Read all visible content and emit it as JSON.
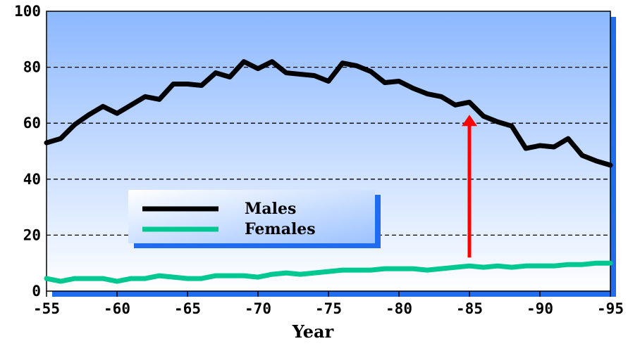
{
  "chart_data": {
    "type": "line",
    "title": "",
    "xlabel": "Year",
    "ylabel": "",
    "xlim": [
      1955,
      1995
    ],
    "ylim": [
      0,
      100
    ],
    "grid": "horizontal-dashed",
    "legend_position": "center-left",
    "x_ticks": [
      {
        "value": 1955,
        "label": "-55"
      },
      {
        "value": 1960,
        "label": "-60"
      },
      {
        "value": 1965,
        "label": "-65"
      },
      {
        "value": 1970,
        "label": "-70"
      },
      {
        "value": 1975,
        "label": "-75"
      },
      {
        "value": 1980,
        "label": "-80"
      },
      {
        "value": 1985,
        "label": "-85"
      },
      {
        "value": 1990,
        "label": "-90"
      },
      {
        "value": 1995,
        "label": "-95"
      }
    ],
    "y_ticks": [
      {
        "value": 0,
        "label": "0"
      },
      {
        "value": 20,
        "label": "20"
      },
      {
        "value": 40,
        "label": "40"
      },
      {
        "value": 60,
        "label": "60"
      },
      {
        "value": 80,
        "label": "80"
      },
      {
        "value": 100,
        "label": "100"
      }
    ],
    "x": [
      1955,
      1956,
      1957,
      1958,
      1959,
      1960,
      1961,
      1962,
      1963,
      1964,
      1965,
      1966,
      1967,
      1968,
      1969,
      1970,
      1971,
      1972,
      1973,
      1974,
      1975,
      1976,
      1977,
      1978,
      1979,
      1980,
      1981,
      1982,
      1983,
      1984,
      1985,
      1986,
      1987,
      1988,
      1989,
      1990,
      1991,
      1992,
      1993,
      1994,
      1995
    ],
    "series": [
      {
        "name": "Males",
        "color": "#000000",
        "values": [
          53,
          54.5,
          59.5,
          63,
          66,
          63.5,
          66.5,
          69.5,
          68.5,
          74,
          74,
          73.5,
          78,
          76.5,
          82,
          79.5,
          82,
          78,
          77.5,
          77,
          75,
          81.5,
          80.5,
          78.5,
          74.5,
          75,
          72.5,
          70.5,
          69.5,
          66.5,
          67.5,
          62.5,
          60.5,
          59,
          51,
          52,
          51.5,
          54.5,
          48.5,
          46.5,
          45
        ]
      },
      {
        "name": "Females",
        "color": "#00C890",
        "values": [
          4.5,
          3.5,
          4.5,
          4.5,
          4.5,
          3.5,
          4.5,
          4.5,
          5.5,
          5,
          4.5,
          4.5,
          5.5,
          5.5,
          5.5,
          5,
          6,
          6.5,
          6,
          6.5,
          7,
          7.5,
          7.5,
          7.5,
          8,
          8,
          8,
          7.5,
          8,
          8.5,
          9,
          8.5,
          9,
          8.5,
          9,
          9,
          9,
          9.5,
          9.5,
          10,
          10
        ]
      }
    ],
    "annotations": [
      {
        "type": "arrow",
        "color": "#FF0000",
        "x": 1985,
        "y_from": 12,
        "y_to": 63
      }
    ]
  }
}
